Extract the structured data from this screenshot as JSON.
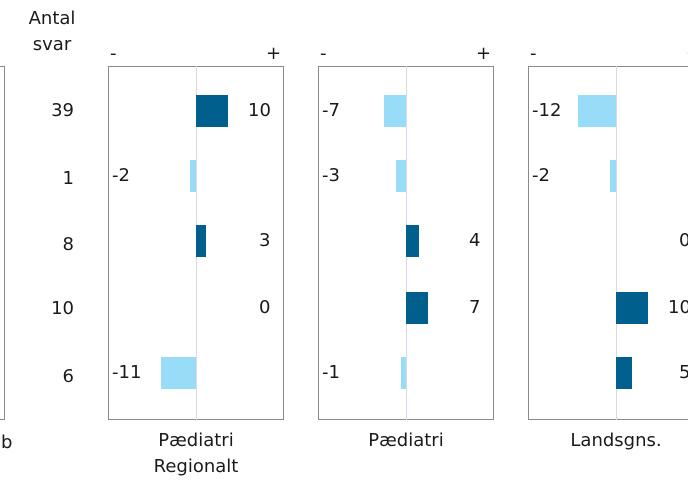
{
  "counts_header": [
    "Antal",
    "svar"
  ],
  "counts": [
    "39",
    "1",
    "8",
    "10",
    "6"
  ],
  "minus_sign": "-",
  "plus_sign": "+",
  "colors": {
    "positive": "#005f8c",
    "negative": "#99dcf7",
    "axis": "#d9d9e6",
    "border": "#8a8a8a"
  },
  "chart_data": [
    {
      "type": "bar",
      "label_lines": [
        "Pædiatri",
        "Regionalt"
      ],
      "values": [
        10,
        -2,
        3,
        0,
        -11
      ]
    },
    {
      "type": "bar",
      "label_lines": [
        "Pædiatri"
      ],
      "values": [
        -7,
        -3,
        4,
        7,
        -1
      ]
    },
    {
      "type": "bar",
      "label_lines": [
        "Landsgns."
      ],
      "values": [
        -12,
        -2,
        0,
        10,
        5
      ]
    }
  ],
  "left_clipped_text": "b"
}
